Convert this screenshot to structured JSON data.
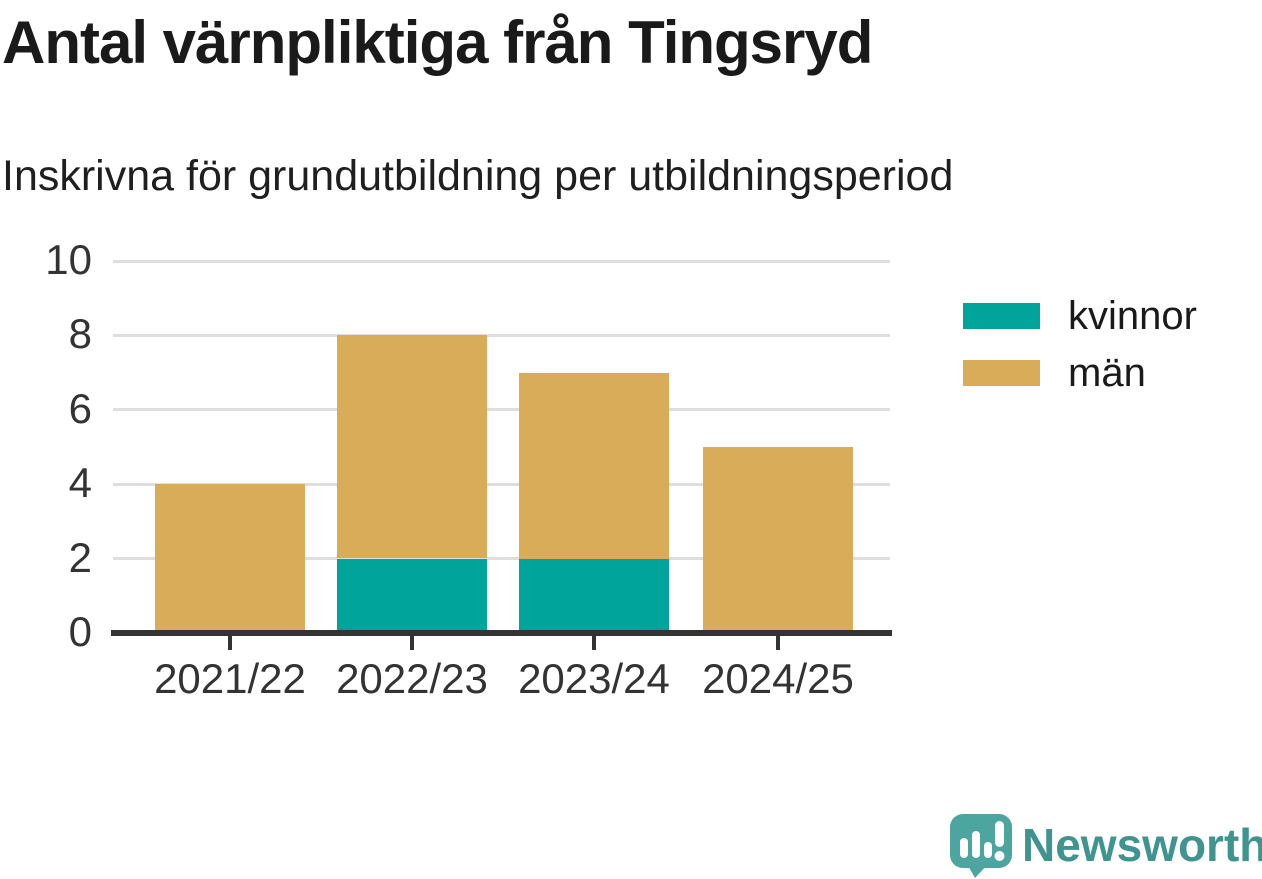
{
  "chart_data": {
    "type": "bar",
    "stacked": true,
    "title": "Antal värnpliktiga från Tingsryd",
    "subtitle": "Inskrivna för grundutbildning per utbildningsperiod",
    "categories": [
      "2021/22",
      "2022/23",
      "2023/24",
      "2024/25"
    ],
    "series": [
      {
        "name": "kvinnor",
        "color": "#00A49A",
        "values": [
          0,
          2,
          2,
          0
        ]
      },
      {
        "name": "män",
        "color": "#D9AC5A",
        "values": [
          4,
          6,
          5,
          5
        ]
      }
    ],
    "stack_totals": [
      4,
      8,
      7,
      5
    ],
    "ylim": [
      0,
      10
    ],
    "yticks": [
      0,
      2,
      4,
      6,
      8,
      10
    ],
    "grid": true,
    "legend_position": "right",
    "colors": {
      "gridline": "#DEDEDE",
      "axis": "#333333",
      "tick_text": "#333333",
      "title_text": "#1A1A1A"
    }
  },
  "brand": {
    "name": "Newsworthy",
    "logo_color": "#4CA69F",
    "text_color": "#3F948F"
  }
}
